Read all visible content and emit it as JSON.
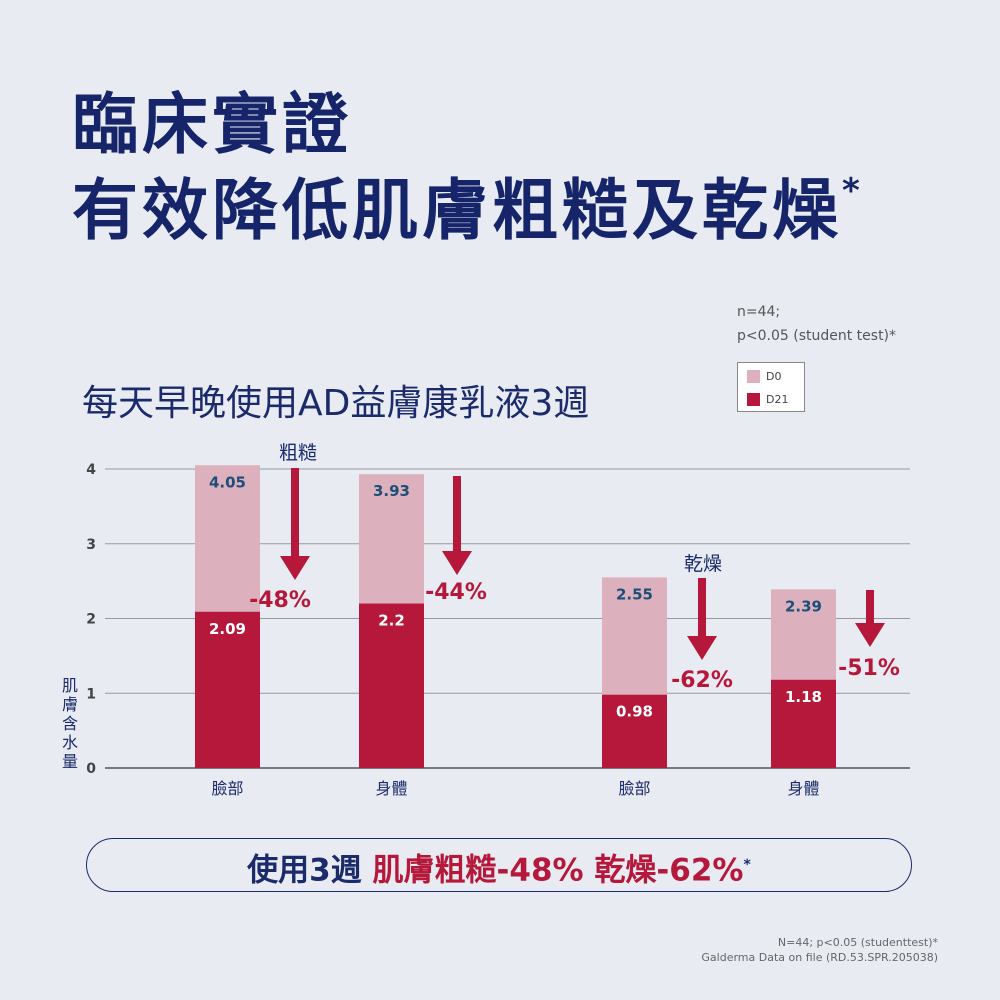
{
  "title": {
    "line1": "臨床實證",
    "line2": "有效降低肌膚粗糙及乾燥",
    "asterisk": "*"
  },
  "subtitle": "每天早晚使用AD益膚康乳液3週",
  "note": {
    "line1": "n=44;",
    "line2": "p<0.05 (student test)*"
  },
  "banner": {
    "prefix": "使用3週 ",
    "highlight": "肌膚粗糙-48% 乾燥-62%",
    "asterisk": "*"
  },
  "footer": {
    "line1": "N=44; p<0.05 (studenttest)*",
    "line2": "Galderma Data on file (RD.53.SPR.205038)"
  },
  "colors": {
    "title": "#16246a",
    "d0": "#dcb0bc",
    "d21": "#b5183a",
    "bg": "#e8ecf2"
  },
  "chart_data": {
    "type": "bar",
    "stacking": "overlay",
    "ylabel": "肌膚含水量",
    "ylim": [
      0,
      4
    ],
    "yticks": [
      "0",
      "1",
      "2",
      "3",
      "4"
    ],
    "grid": true,
    "legend_position": "top-right",
    "categories": [
      "臉部",
      "身體",
      "臉部",
      "身體"
    ],
    "groups": [
      {
        "label": "粗糙",
        "indices": [
          0,
          1
        ]
      },
      {
        "label": "乾燥",
        "indices": [
          2,
          3
        ]
      }
    ],
    "series": [
      {
        "name": "D0",
        "values": [
          4.05,
          3.93,
          2.55,
          2.39
        ],
        "labels": [
          "4.05",
          "3.93",
          "2.55",
          "2.39"
        ]
      },
      {
        "name": "D21",
        "values": [
          2.09,
          2.2,
          0.98,
          1.18
        ],
        "labels": [
          "2.09",
          "2.2",
          "0.98",
          "1.18"
        ]
      }
    ],
    "changes": [
      "-48%",
      "-44%",
      "-62%",
      "-51%"
    ]
  }
}
